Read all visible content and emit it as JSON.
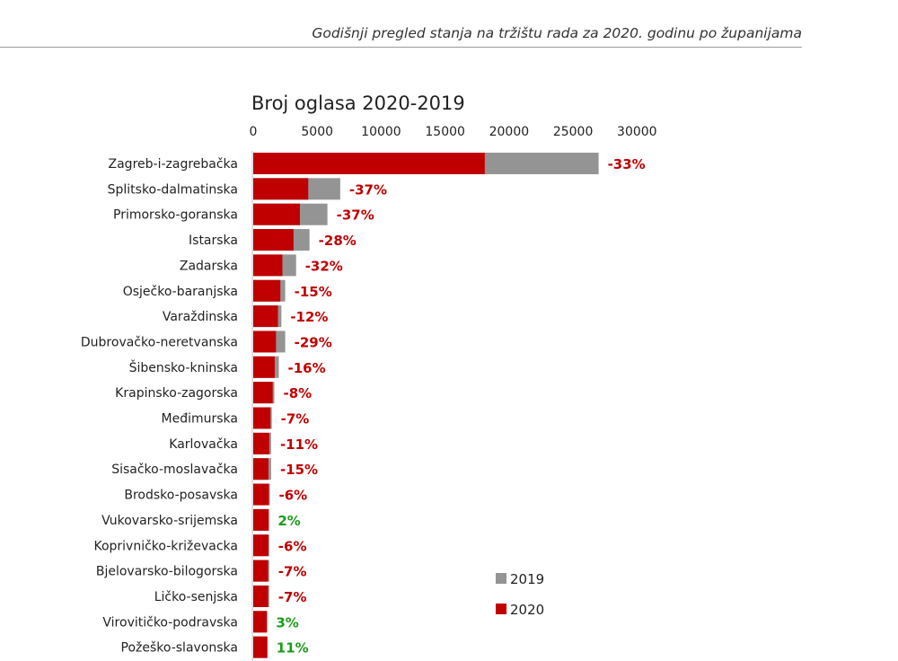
{
  "header": {
    "text": "Godišnji pregled stanja na tržištu rada za 2020. godinu po županijama"
  },
  "colors": {
    "y2020": "#c00000",
    "y2019": "#949494",
    "negative": "#c00000",
    "positive": "#1a9c1a"
  },
  "chart_data": {
    "type": "bar",
    "orientation": "horizontal",
    "title": "Broj oglasa 2020-2019",
    "xlim": [
      0,
      30000
    ],
    "xticks": [
      "0",
      "5000",
      "10000",
      "15000",
      "20000",
      "25000",
      "30000"
    ],
    "tick_values": [
      0,
      5000,
      10000,
      15000,
      20000,
      25000,
      30000
    ],
    "legend": {
      "position": "bottom-right",
      "entries": [
        "2019",
        "2020"
      ]
    },
    "categories": [
      "Zagreb-i-zagrebačka",
      "Splitsko-dalmatinska",
      "Primorsko-goranska",
      "Istarska",
      "Zadarska",
      "Osječko-baranjska",
      "Varaždinska",
      "Dubrovačko-neretvanska",
      "Šibensko-kninska",
      "Krapinsko-zagorska",
      "Međimurska",
      "Karlovačka",
      "Sisačko-moslavačka",
      "Brodsko-posavska",
      "Vukovarsko-srijemska",
      "Koprivničko-križevacka",
      "Bjelovarsko-bilogorska",
      "Ličko-senjska",
      "Virovitičko-podravska",
      "Požeško-slavonska"
    ],
    "series": [
      {
        "name": "2019",
        "values": [
          27000,
          6800,
          5800,
          4400,
          3350,
          2500,
          2200,
          2500,
          2000,
          1650,
          1450,
          1400,
          1400,
          1300,
          1200,
          1250,
          1250,
          1250,
          1050,
          1000
        ]
      },
      {
        "name": "2020",
        "values": [
          18100,
          4300,
          3650,
          3150,
          2280,
          2120,
          1930,
          1780,
          1680,
          1520,
          1350,
          1250,
          1190,
          1220,
          1220,
          1180,
          1160,
          1160,
          1080,
          1110
        ]
      }
    ],
    "change_labels": [
      "-33%",
      "-37%",
      "-37%",
      "-28%",
      "-32%",
      "-15%",
      "-12%",
      "-29%",
      "-16%",
      "-8%",
      "-7%",
      "-11%",
      "-15%",
      "-6%",
      "2%",
      "-6%",
      "-7%",
      "-7%",
      "3%",
      "11%"
    ]
  }
}
